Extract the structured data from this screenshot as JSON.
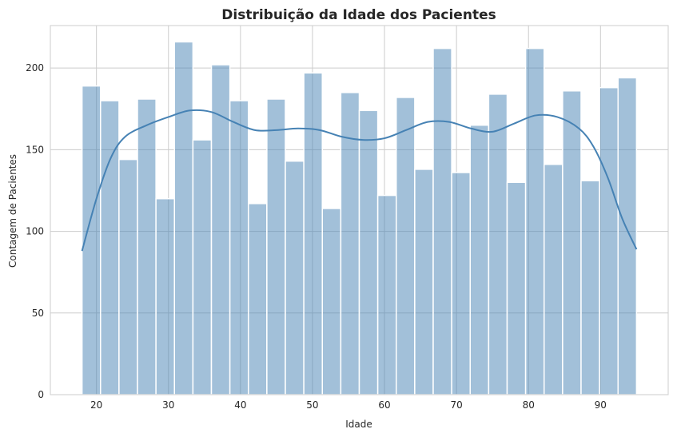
{
  "chart_data": {
    "type": "bar",
    "title": "Distribuição da Idade dos Pacientes",
    "xlabel": "Idade",
    "ylabel": "Contagem de Pacientes",
    "xlim": [
      13.6,
      99.4
    ],
    "ylim": [
      0,
      226
    ],
    "xticks": [
      20,
      30,
      40,
      50,
      60,
      70,
      80,
      90
    ],
    "yticks": [
      0,
      50,
      100,
      150,
      200
    ],
    "grid": true,
    "bins": {
      "start": 18,
      "end": 95,
      "counts": [
        189,
        180,
        144,
        181,
        120,
        216,
        156,
        202,
        180,
        117,
        181,
        143,
        197,
        114,
        185,
        174,
        122,
        182,
        138,
        212,
        136,
        165,
        184,
        130,
        212,
        141,
        186,
        131,
        188,
        194
      ]
    },
    "kde": {
      "x": [
        18,
        20,
        22,
        24,
        27,
        30,
        33,
        36,
        39,
        42,
        45,
        48,
        51,
        54,
        57,
        60,
        63,
        66,
        69,
        72,
        75,
        78,
        81,
        84,
        87,
        89,
        91,
        93,
        95
      ],
      "y": [
        88,
        120,
        145,
        158,
        165,
        170,
        174,
        173,
        167,
        162,
        162,
        163,
        162,
        158,
        156,
        157,
        162,
        167,
        167,
        163,
        161,
        166,
        171,
        170,
        163,
        152,
        133,
        108,
        89
      ]
    },
    "colors": {
      "bar": "#4682b4",
      "line": "#4682b4",
      "grid": "#cccccc"
    }
  }
}
